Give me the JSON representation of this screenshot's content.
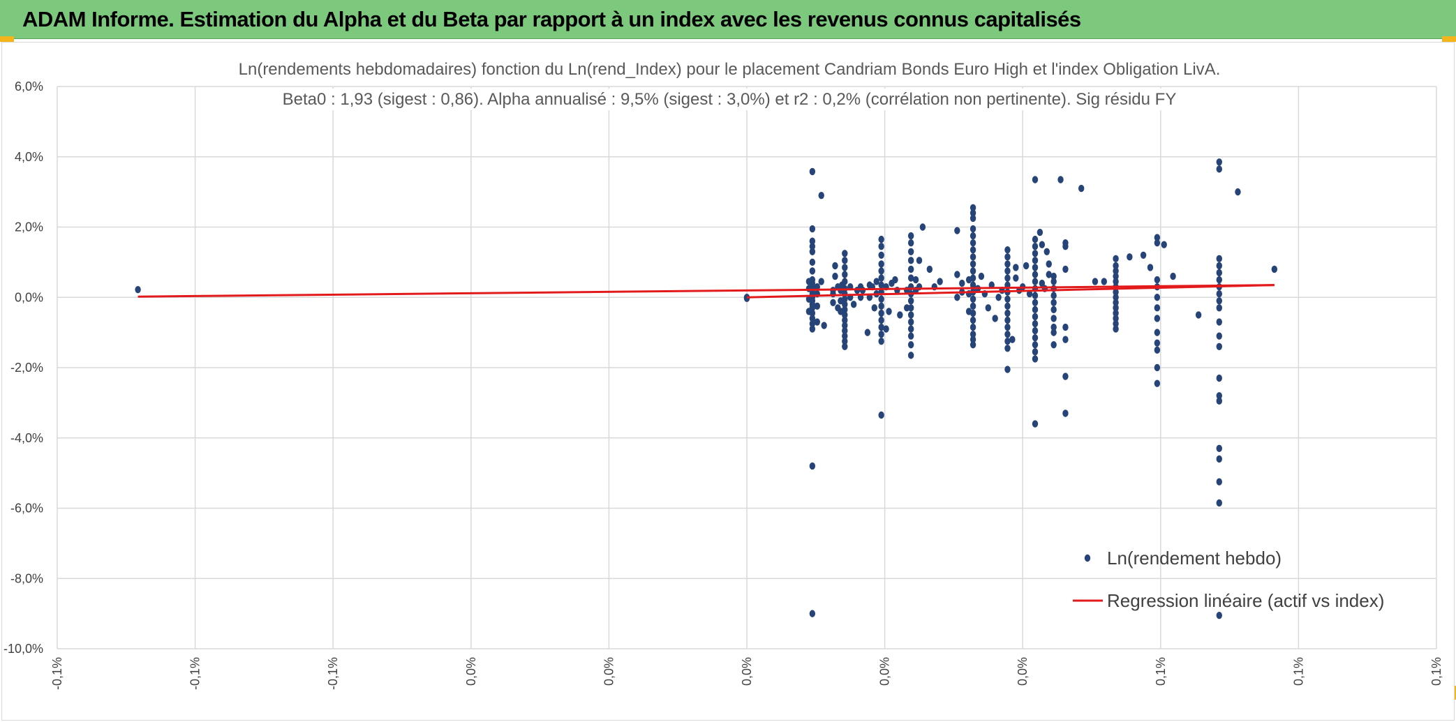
{
  "header": {
    "title": "ADAM Informe. Estimation du Alpha et du Beta par rapport à un index avec les revenus connus capitalisés"
  },
  "colors": {
    "header_bg": "#7cc87d",
    "corner_accent": "#f3b51b",
    "points": "#264478",
    "regression": "#e31a1c",
    "grid": "#d9d9d9"
  },
  "chart_data": {
    "type": "scatter",
    "title_lines": [
      "Ln(rendements hebdomadaires) fonction du Ln(rend_Index) pour le placement Candriam Bonds Euro High  et l'index Obligation LivA.",
      "Beta0 : 1,93 (sigest : 0,86). Alpha annualisé : 9,5% (sigest : 3,0%) et r2 : 0,2% (corrélation non pertinente). Sig résidu FY"
    ],
    "xlim": [
      -0.1,
      0.1
    ],
    "ylim": [
      -10,
      6
    ],
    "x_tick_labels": [
      "-0,1%",
      "-0,1%",
      "-0,1%",
      "0,0%",
      "0,0%",
      "0,0%",
      "0,0%",
      "0,0%",
      "0,1%",
      "0,1%",
      "0,1%"
    ],
    "y_tick_labels": [
      "6,0%",
      "4,0%",
      "2,0%",
      "0,0%",
      "-2,0%",
      "-4,0%",
      "-6,0%",
      "-8,0%",
      "-10,0%"
    ],
    "y_ticks": [
      6,
      4,
      2,
      0,
      -2,
      -4,
      -6,
      -8,
      -10
    ],
    "grid": true,
    "legend_position": "bottom-right",
    "series": [
      {
        "name": "Ln(rendement hebdo)",
        "kind": "points",
        "points": [
          [
            -0.0883,
            0.22
          ],
          [
            0.0,
            0.0
          ],
          [
            0.0,
            -0.03
          ],
          [
            0.0095,
            3.58
          ],
          [
            0.0095,
            -4.8
          ],
          [
            0.0095,
            -9.0
          ],
          [
            0.0095,
            1.95
          ],
          [
            0.0095,
            1.6
          ],
          [
            0.0095,
            1.45
          ],
          [
            0.0095,
            1.3
          ],
          [
            0.0095,
            1.0
          ],
          [
            0.0095,
            0.75
          ],
          [
            0.0095,
            0.5
          ],
          [
            0.0095,
            0.4
          ],
          [
            0.0095,
            0.3
          ],
          [
            0.0095,
            0.2
          ],
          [
            0.0095,
            0.1
          ],
          [
            0.0095,
            0.0
          ],
          [
            0.0095,
            -0.1
          ],
          [
            0.0095,
            -0.2
          ],
          [
            0.0095,
            -0.3
          ],
          [
            0.0095,
            -0.45
          ],
          [
            0.0095,
            -0.6
          ],
          [
            0.0095,
            -0.75
          ],
          [
            0.0095,
            -0.9
          ],
          [
            0.009,
            0.45
          ],
          [
            0.009,
            0.25
          ],
          [
            0.009,
            -0.05
          ],
          [
            0.009,
            -0.4
          ],
          [
            0.0102,
            0.3
          ],
          [
            0.0102,
            0.1
          ],
          [
            0.0102,
            -0.25
          ],
          [
            0.0102,
            -0.7
          ],
          [
            0.0108,
            2.9
          ],
          [
            0.0108,
            0.45
          ],
          [
            0.0112,
            -0.8
          ],
          [
            0.0125,
            0.1
          ],
          [
            0.0125,
            -0.15
          ],
          [
            0.0125,
            0.2
          ],
          [
            0.0128,
            0.6
          ],
          [
            0.0128,
            0.9
          ],
          [
            0.0132,
            0.3
          ],
          [
            0.0132,
            -0.3
          ],
          [
            0.0142,
            1.25
          ],
          [
            0.0142,
            1.05
          ],
          [
            0.0142,
            0.85
          ],
          [
            0.0142,
            0.65
          ],
          [
            0.0142,
            0.45
          ],
          [
            0.0142,
            0.25
          ],
          [
            0.0142,
            0.1
          ],
          [
            0.0142,
            -0.05
          ],
          [
            0.0142,
            -0.2
          ],
          [
            0.0142,
            -0.35
          ],
          [
            0.0142,
            -0.5
          ],
          [
            0.0142,
            -0.65
          ],
          [
            0.0142,
            -0.8
          ],
          [
            0.0142,
            -0.95
          ],
          [
            0.0142,
            -1.1
          ],
          [
            0.0142,
            -1.25
          ],
          [
            0.0142,
            -1.4
          ],
          [
            0.0136,
            0.2
          ],
          [
            0.0136,
            -0.1
          ],
          [
            0.0136,
            -0.4
          ],
          [
            0.0138,
            0.35
          ],
          [
            0.015,
            0.3
          ],
          [
            0.015,
            0.0
          ],
          [
            0.0155,
            -0.2
          ],
          [
            0.016,
            0.2
          ],
          [
            0.0165,
            0.3
          ],
          [
            0.0165,
            0.0
          ],
          [
            0.0168,
            0.2
          ],
          [
            0.0175,
            -1.0
          ],
          [
            0.0178,
            0.0
          ],
          [
            0.0178,
            0.35
          ],
          [
            0.0182,
            0.3
          ],
          [
            0.0185,
            -0.3
          ],
          [
            0.0188,
            0.45
          ],
          [
            0.0188,
            0.1
          ],
          [
            0.0195,
            1.65
          ],
          [
            0.0195,
            1.45
          ],
          [
            0.0195,
            1.2
          ],
          [
            0.0195,
            0.95
          ],
          [
            0.0195,
            0.75
          ],
          [
            0.0195,
            0.55
          ],
          [
            0.0195,
            0.35
          ],
          [
            0.0195,
            0.15
          ],
          [
            0.0195,
            -0.05
          ],
          [
            0.0195,
            -0.25
          ],
          [
            0.0195,
            -0.45
          ],
          [
            0.0195,
            -0.65
          ],
          [
            0.0195,
            -0.85
          ],
          [
            0.0195,
            -1.05
          ],
          [
            0.0195,
            -1.25
          ],
          [
            0.0195,
            -3.35
          ],
          [
            0.0202,
            0.3
          ],
          [
            0.0202,
            -0.9
          ],
          [
            0.0206,
            -0.4
          ],
          [
            0.021,
            0.4
          ],
          [
            0.0215,
            0.5
          ],
          [
            0.0218,
            0.2
          ],
          [
            0.0222,
            -0.5
          ],
          [
            0.0238,
            1.75
          ],
          [
            0.0238,
            1.55
          ],
          [
            0.0238,
            1.3
          ],
          [
            0.0238,
            1.05
          ],
          [
            0.0238,
            0.8
          ],
          [
            0.0238,
            0.55
          ],
          [
            0.0238,
            0.3
          ],
          [
            0.0238,
            0.1
          ],
          [
            0.0238,
            -0.1
          ],
          [
            0.0238,
            -0.3
          ],
          [
            0.0238,
            -0.5
          ],
          [
            0.0238,
            -0.7
          ],
          [
            0.0238,
            -0.9
          ],
          [
            0.0238,
            -1.1
          ],
          [
            0.0238,
            -1.35
          ],
          [
            0.0238,
            -1.65
          ],
          [
            0.0232,
            0.2
          ],
          [
            0.0232,
            -0.3
          ],
          [
            0.0245,
            0.5
          ],
          [
            0.0245,
            0.2
          ],
          [
            0.025,
            1.05
          ],
          [
            0.0255,
            2.0
          ],
          [
            0.025,
            0.3
          ],
          [
            0.0265,
            0.8
          ],
          [
            0.0272,
            0.3
          ],
          [
            0.028,
            0.45
          ],
          [
            0.0305,
            1.9
          ],
          [
            0.0305,
            0.65
          ],
          [
            0.0305,
            0.0
          ],
          [
            0.0312,
            0.4
          ],
          [
            0.0312,
            0.15
          ],
          [
            0.0328,
            2.55
          ],
          [
            0.0328,
            2.4
          ],
          [
            0.0328,
            2.25
          ],
          [
            0.0328,
            1.95
          ],
          [
            0.0328,
            1.75
          ],
          [
            0.0328,
            1.55
          ],
          [
            0.0328,
            1.35
          ],
          [
            0.0328,
            1.15
          ],
          [
            0.0328,
            0.95
          ],
          [
            0.0328,
            0.75
          ],
          [
            0.0328,
            0.55
          ],
          [
            0.0328,
            0.35
          ],
          [
            0.0328,
            0.15
          ],
          [
            0.0328,
            -0.05
          ],
          [
            0.0328,
            -0.25
          ],
          [
            0.0328,
            -0.45
          ],
          [
            0.0328,
            -0.65
          ],
          [
            0.0328,
            -0.85
          ],
          [
            0.0328,
            -1.05
          ],
          [
            0.0328,
            -1.2
          ],
          [
            0.0328,
            -1.35
          ],
          [
            0.0322,
            0.5
          ],
          [
            0.0322,
            0.1
          ],
          [
            0.0322,
            -0.4
          ],
          [
            0.0335,
            0.25
          ],
          [
            0.034,
            0.6
          ],
          [
            0.0345,
            0.1
          ],
          [
            0.035,
            -0.3
          ],
          [
            0.0355,
            0.35
          ],
          [
            0.036,
            -0.6
          ],
          [
            0.0365,
            0.0
          ],
          [
            0.037,
            0.2
          ],
          [
            0.0378,
            1.35
          ],
          [
            0.0378,
            1.15
          ],
          [
            0.0378,
            0.95
          ],
          [
            0.0378,
            0.75
          ],
          [
            0.0378,
            0.55
          ],
          [
            0.0378,
            0.35
          ],
          [
            0.0378,
            0.15
          ],
          [
            0.0378,
            -0.05
          ],
          [
            0.0378,
            -0.25
          ],
          [
            0.0378,
            -0.45
          ],
          [
            0.0378,
            -0.65
          ],
          [
            0.0378,
            -0.85
          ],
          [
            0.0378,
            -1.05
          ],
          [
            0.0378,
            -1.25
          ],
          [
            0.0378,
            -1.45
          ],
          [
            0.0378,
            -2.05
          ],
          [
            0.0385,
            -1.2
          ],
          [
            0.039,
            0.85
          ],
          [
            0.039,
            0.55
          ],
          [
            0.0395,
            0.2
          ],
          [
            0.04,
            0.3
          ],
          [
            0.0405,
            0.9
          ],
          [
            0.041,
            0.1
          ],
          [
            0.0418,
            1.65
          ],
          [
            0.0418,
            1.45
          ],
          [
            0.0418,
            1.25
          ],
          [
            0.0418,
            1.05
          ],
          [
            0.0418,
            0.85
          ],
          [
            0.0418,
            0.65
          ],
          [
            0.0418,
            0.45
          ],
          [
            0.0418,
            0.25
          ],
          [
            0.0418,
            0.05
          ],
          [
            0.0418,
            -0.15
          ],
          [
            0.0418,
            -0.35
          ],
          [
            0.0418,
            -0.55
          ],
          [
            0.0418,
            -0.75
          ],
          [
            0.0418,
            -0.95
          ],
          [
            0.0418,
            -1.15
          ],
          [
            0.0418,
            -1.35
          ],
          [
            0.0418,
            -1.55
          ],
          [
            0.0418,
            -1.75
          ],
          [
            0.0418,
            3.35
          ],
          [
            0.0418,
            -3.6
          ],
          [
            0.0425,
            1.85
          ],
          [
            0.0428,
            1.5
          ],
          [
            0.0428,
            0.4
          ],
          [
            0.0432,
            0.25
          ],
          [
            0.0435,
            1.3
          ],
          [
            0.0438,
            0.95
          ],
          [
            0.0438,
            0.65
          ],
          [
            0.0445,
            0.6
          ],
          [
            0.0445,
            0.45
          ],
          [
            0.0445,
            0.25
          ],
          [
            0.0445,
            0.05
          ],
          [
            0.0445,
            -0.15
          ],
          [
            0.0445,
            -0.35
          ],
          [
            0.0445,
            -0.6
          ],
          [
            0.0445,
            -0.85
          ],
          [
            0.0445,
            -1.0
          ],
          [
            0.0445,
            -1.35
          ],
          [
            0.0455,
            3.35
          ],
          [
            0.0462,
            1.55
          ],
          [
            0.0462,
            1.45
          ],
          [
            0.0462,
            0.8
          ],
          [
            0.0462,
            -0.85
          ],
          [
            0.0462,
            -1.2
          ],
          [
            0.0462,
            -2.25
          ],
          [
            0.0462,
            -3.3
          ],
          [
            0.0485,
            3.1
          ],
          [
            0.0505,
            0.45
          ],
          [
            0.0518,
            0.45
          ],
          [
            0.0535,
            1.1
          ],
          [
            0.0535,
            0.9
          ],
          [
            0.0535,
            0.75
          ],
          [
            0.0535,
            0.6
          ],
          [
            0.0535,
            0.45
          ],
          [
            0.0535,
            0.3
          ],
          [
            0.0535,
            0.15
          ],
          [
            0.0535,
            0.0
          ],
          [
            0.0535,
            -0.15
          ],
          [
            0.0535,
            -0.3
          ],
          [
            0.0535,
            -0.45
          ],
          [
            0.0535,
            -0.6
          ],
          [
            0.0535,
            -0.75
          ],
          [
            0.0535,
            -0.9
          ],
          [
            0.0555,
            1.15
          ],
          [
            0.0575,
            1.2
          ],
          [
            0.0585,
            0.85
          ],
          [
            0.0595,
            1.7
          ],
          [
            0.0595,
            1.55
          ],
          [
            0.0595,
            0.5
          ],
          [
            0.0595,
            0.3
          ],
          [
            0.0595,
            0.0
          ],
          [
            0.0595,
            -0.3
          ],
          [
            0.0595,
            -0.6
          ],
          [
            0.0595,
            -1.0
          ],
          [
            0.0595,
            -1.3
          ],
          [
            0.0595,
            -1.5
          ],
          [
            0.0595,
            -2.0
          ],
          [
            0.0595,
            -2.45
          ],
          [
            0.0605,
            1.5
          ],
          [
            0.0618,
            0.6
          ],
          [
            0.0655,
            -0.5
          ],
          [
            0.0685,
            3.85
          ],
          [
            0.0685,
            3.65
          ],
          [
            0.0685,
            1.1
          ],
          [
            0.0685,
            0.9
          ],
          [
            0.0685,
            0.7
          ],
          [
            0.0685,
            0.5
          ],
          [
            0.0685,
            0.3
          ],
          [
            0.0685,
            0.1
          ],
          [
            0.0685,
            -0.1
          ],
          [
            0.0685,
            -0.3
          ],
          [
            0.0685,
            -0.7
          ],
          [
            0.0685,
            -1.1
          ],
          [
            0.0685,
            -1.4
          ],
          [
            0.0685,
            -2.3
          ],
          [
            0.0685,
            -2.8
          ],
          [
            0.0685,
            -2.95
          ],
          [
            0.0685,
            -4.3
          ],
          [
            0.0685,
            -4.6
          ],
          [
            0.0685,
            -5.25
          ],
          [
            0.0685,
            -5.85
          ],
          [
            0.0685,
            -9.05
          ],
          [
            0.0712,
            3.0
          ],
          [
            0.0765,
            0.8
          ]
        ]
      },
      {
        "name": "Regression linéaire (actif vs index)",
        "kind": "lines",
        "segments": [
          [
            [
              -0.0883,
              0.02
            ],
            [
              0.0765,
              0.35
            ]
          ],
          [
            [
              0.0,
              0.0
            ],
            [
              0.0765,
              0.35
            ]
          ]
        ]
      }
    ]
  }
}
